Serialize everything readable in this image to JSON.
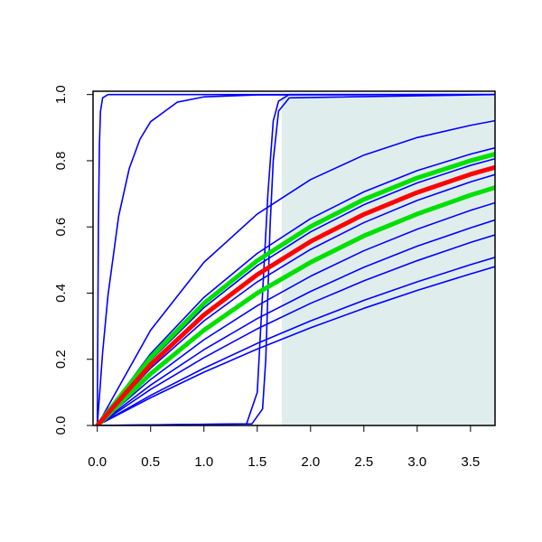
{
  "chart_data": {
    "type": "line",
    "xlim": [
      -0.04,
      3.73
    ],
    "ylim": [
      0,
      1.01
    ],
    "xticks": [
      {
        "value": 0,
        "label": "0.0"
      },
      0.5,
      {
        "value": 1,
        "label": "1.0"
      },
      1.5,
      {
        "value": 2,
        "label": "2.0"
      },
      2.5,
      {
        "value": 3,
        "label": "3.0"
      },
      3.5
    ],
    "yticks": [
      {
        "value": 0,
        "label": "0.0"
      },
      0.2,
      0.4,
      0.6,
      0.8,
      {
        "value": 1,
        "label": "1.0"
      }
    ],
    "shade": {
      "xmin": 1.73,
      "color": "#e0eded"
    },
    "series": [
      {
        "color": "#0000ff",
        "x": [
          0,
          0.01,
          0.02,
          0.03,
          0.05,
          0.1,
          3.73
        ],
        "values": [
          0,
          0.6,
          0.85,
          0.95,
          0.99,
          1,
          1
        ]
      },
      {
        "color": "#0000ff",
        "x": [
          0,
          0.05,
          0.1,
          0.2,
          0.3,
          0.4,
          0.5,
          0.75,
          1,
          1.5,
          3.73
        ],
        "values": [
          0,
          0.221,
          0.393,
          0.632,
          0.777,
          0.865,
          0.918,
          0.977,
          0.993,
          0.999,
          1
        ]
      },
      {
        "color": "#0000ff",
        "x": [
          0,
          1.4,
          1.5,
          1.55,
          1.6,
          1.65,
          1.7,
          1.8,
          3.73
        ],
        "values": [
          0,
          0.005,
          0.1,
          0.4,
          0.7,
          0.92,
          0.98,
          1,
          1
        ]
      },
      {
        "color": "#0000ff",
        "x": [
          0,
          1.45,
          1.55,
          1.58,
          1.6,
          1.62,
          1.65,
          1.7,
          1.8,
          3.73
        ],
        "values": [
          0,
          0.005,
          0.05,
          0.2,
          0.4,
          0.6,
          0.8,
          0.95,
          0.99,
          1
        ]
      },
      {
        "color": "#0000ff",
        "x": [
          0,
          0.5,
          1,
          1.5,
          2,
          2.5,
          3,
          3.5,
          3.73
        ],
        "values": [
          0,
          0.288,
          0.493,
          0.639,
          0.743,
          0.817,
          0.87,
          0.907,
          0.921
        ]
      },
      {
        "color": "#0000ff",
        "x": [
          0,
          0.5,
          1,
          1.5,
          2,
          2.5,
          3,
          3.5,
          3.73
        ],
        "values": [
          0,
          0.217,
          0.387,
          0.52,
          0.625,
          0.706,
          0.77,
          0.82,
          0.839
        ]
      },
      {
        "color": "#0000ff",
        "x": [
          0,
          0.5,
          1,
          1.5,
          2,
          2.5,
          3,
          3.5,
          3.73
        ],
        "values": [
          0,
          0.197,
          0.356,
          0.483,
          0.585,
          0.667,
          0.733,
          0.786,
          0.806
        ]
      },
      {
        "color": "#0000ff",
        "x": [
          0,
          0.5,
          1,
          1.5,
          2,
          2.5,
          3,
          3.5,
          3.73
        ],
        "values": [
          0,
          0.173,
          0.316,
          0.434,
          0.532,
          0.613,
          0.68,
          0.736,
          0.758
        ]
      },
      {
        "color": "#0000ff",
        "x": [
          0,
          0.5,
          1,
          1.5,
          2,
          2.5,
          3,
          3.5,
          3.73
        ],
        "values": [
          0,
          0.139,
          0.259,
          0.362,
          0.451,
          0.528,
          0.593,
          0.65,
          0.673
        ]
      },
      {
        "color": "#0000ff",
        "x": [
          0,
          0.5,
          1,
          1.5,
          2,
          2.5,
          3,
          3.5,
          3.73
        ],
        "values": [
          0,
          0.122,
          0.229,
          0.323,
          0.405,
          0.478,
          0.542,
          0.597,
          0.621
        ]
      },
      {
        "color": "#0000ff",
        "x": [
          0,
          0.5,
          1,
          1.5,
          2,
          2.5,
          3,
          3.5,
          3.73
        ],
        "values": [
          0,
          0.109,
          0.205,
          0.292,
          0.369,
          0.437,
          0.498,
          0.553,
          0.576
        ]
      },
      {
        "color": "#0000ff",
        "x": [
          0,
          0.5,
          1,
          1.5,
          2,
          2.5,
          3,
          3.5,
          3.73
        ],
        "values": [
          0,
          0.091,
          0.173,
          0.248,
          0.316,
          0.378,
          0.434,
          0.486,
          0.508
        ]
      },
      {
        "color": "#0000ff",
        "x": [
          0,
          0.5,
          1,
          1.5,
          2,
          2.5,
          3,
          3.5,
          3.73
        ],
        "values": [
          0,
          0.084,
          0.161,
          0.231,
          0.295,
          0.354,
          0.408,
          0.458,
          0.48
        ]
      },
      {
        "color": "#00e000",
        "x": [
          0,
          0.5,
          1,
          1.5,
          2,
          2.5,
          3,
          3.5,
          3.73
        ],
        "values": [
          0,
          0.205,
          0.369,
          0.498,
          0.601,
          0.683,
          0.748,
          0.8,
          0.82
        ]
      },
      {
        "color": "#00e000",
        "x": [
          0,
          0.5,
          1,
          1.5,
          2,
          2.5,
          3,
          3.5,
          3.73
        ],
        "values": [
          0,
          0.156,
          0.288,
          0.4,
          0.493,
          0.573,
          0.639,
          0.696,
          0.719
        ]
      },
      {
        "color": "#ff0000",
        "x": [
          0,
          0.5,
          1,
          1.5,
          2,
          2.5,
          3,
          3.5,
          3.73
        ],
        "values": [
          0,
          0.184,
          0.334,
          0.456,
          0.556,
          0.638,
          0.704,
          0.759,
          0.78
        ]
      }
    ]
  }
}
